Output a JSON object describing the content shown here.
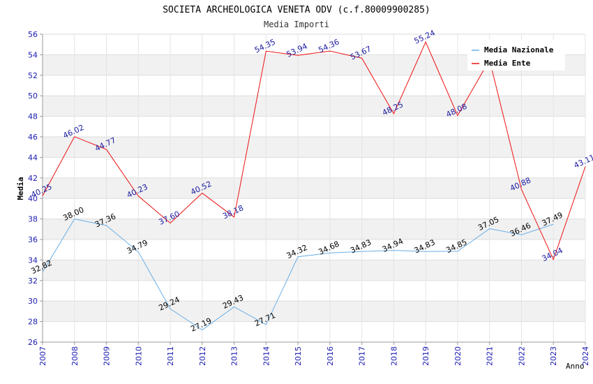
{
  "chart_data": {
    "type": "line",
    "title": "SOCIETA ARCHEOLOGICA VENETA ODV (c.f.80009900285)",
    "subtitle": "Media Importi",
    "xlabel": "Anno",
    "ylabel": "Media",
    "ylim": [
      26,
      56
    ],
    "ytick_step": 2,
    "x": [
      2007,
      2008,
      2009,
      2010,
      2011,
      2012,
      2013,
      2014,
      2015,
      2016,
      2017,
      2018,
      2019,
      2020,
      2021,
      2022,
      2023,
      2024
    ],
    "grid": true,
    "legend_position": "top-right",
    "series": [
      {
        "name": "Media Nazionale",
        "color": "#6aaee6",
        "label_color": "#000000",
        "x": [
          2007,
          2008,
          2009,
          2010,
          2011,
          2012,
          2013,
          2014,
          2015,
          2016,
          2017,
          2018,
          2019,
          2020,
          2021,
          2022,
          2023
        ],
        "values": [
          32.82,
          38.0,
          37.36,
          34.79,
          29.24,
          27.19,
          29.43,
          27.71,
          34.32,
          34.68,
          34.83,
          34.94,
          34.83,
          34.85,
          37.05,
          36.46,
          37.49
        ],
        "labels": [
          "32.82",
          "38.00",
          "37.36",
          "34.79",
          "29.24",
          "27.19",
          "29.43",
          "27.71",
          "34.32",
          "34.68",
          "34.83",
          "34.94",
          "34.83",
          "34.85",
          "37.05",
          "36.46",
          "37.49"
        ]
      },
      {
        "name": "Media Ente",
        "color": "#ee1111",
        "label_color": "#1a1aa0",
        "x": [
          2007,
          2008,
          2009,
          2010,
          2011,
          2012,
          2013,
          2014,
          2015,
          2016,
          2017,
          2018,
          2019,
          2020,
          2021,
          2022,
          2023,
          2024
        ],
        "values": [
          40.25,
          46.02,
          44.77,
          40.23,
          37.6,
          40.52,
          38.18,
          54.35,
          53.94,
          54.36,
          53.67,
          48.25,
          55.24,
          48.08,
          53.5,
          40.88,
          34.04,
          43.11
        ],
        "labels": [
          "40.25",
          "46.02",
          "44.77",
          "40.23",
          "37.60",
          "40.52",
          "38.18",
          "54.35",
          "53.94",
          "54.36",
          "53.67",
          "48.25",
          "55.24",
          "48.08",
          "",
          "40.88",
          "34.04",
          "43.11"
        ]
      }
    ]
  }
}
